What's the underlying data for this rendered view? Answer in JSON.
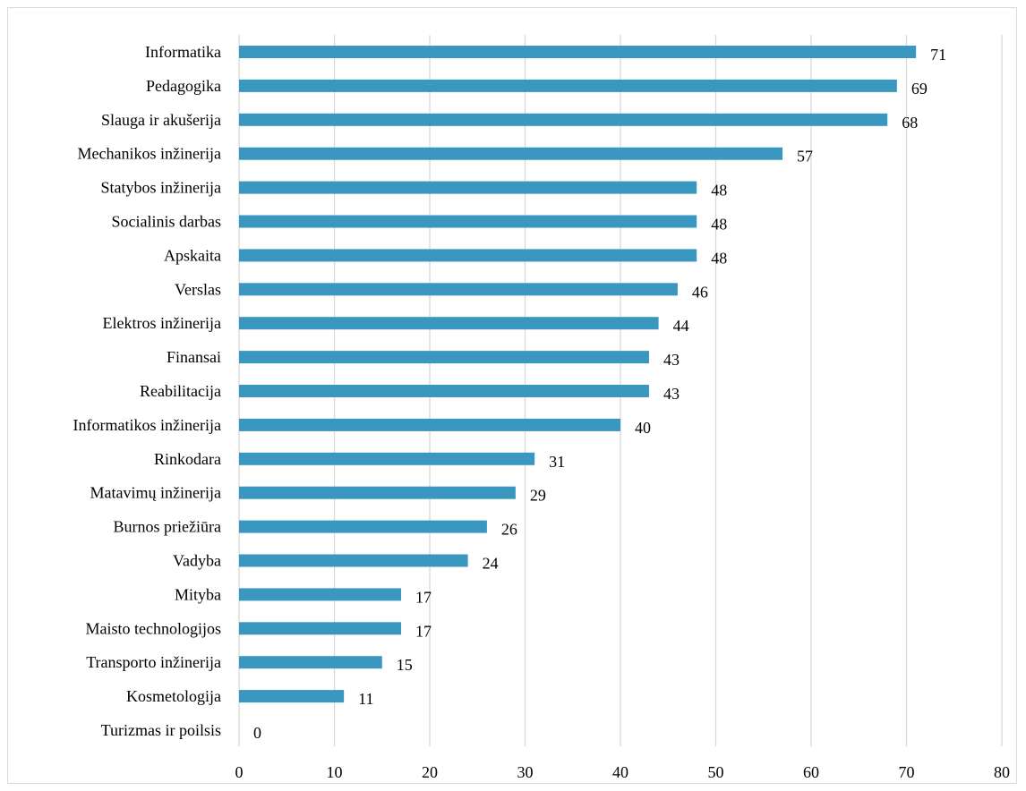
{
  "chart_data": {
    "type": "bar",
    "orientation": "horizontal",
    "title": "",
    "xlabel": "",
    "ylabel": "",
    "xlim": [
      0,
      80
    ],
    "x_ticks": [
      0,
      10,
      20,
      30,
      40,
      50,
      60,
      70,
      80
    ],
    "grid": "vertical",
    "bar_color": "#3a97bf",
    "gridline_color": "#d9d9d9",
    "categories": [
      "Informatika",
      "Pedagogika",
      "Slauga ir akušerija",
      "Mechanikos inžinerija",
      "Statybos inžinerija",
      "Socialinis darbas",
      "Apskaita",
      "Verslas",
      "Elektros inžinerija",
      "Finansai",
      "Reabilitacija",
      "Informatikos inžinerija",
      "Rinkodara",
      "Matavimų inžinerija",
      "Burnos priežiūra",
      "Vadyba",
      "Mityba",
      "Maisto technologijos",
      "Transporto inžinerija",
      "Kosmetologija",
      "Turizmas ir poilsis"
    ],
    "values": [
      71,
      69,
      68,
      57,
      48,
      48,
      48,
      46,
      44,
      43,
      43,
      40,
      31,
      29,
      26,
      24,
      17,
      17,
      15,
      11,
      0
    ]
  }
}
